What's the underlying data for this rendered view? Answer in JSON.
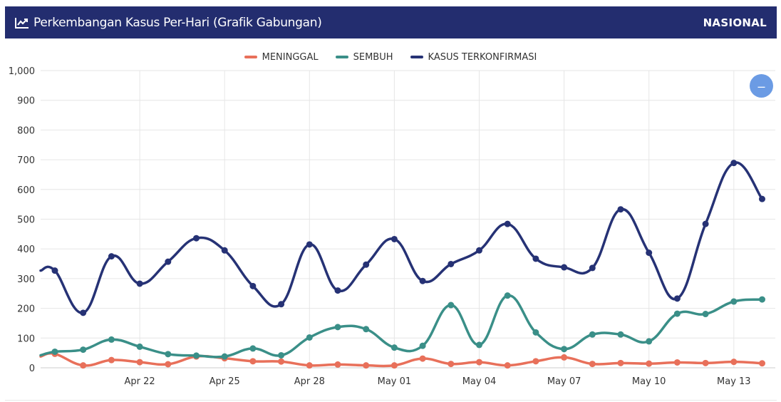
{
  "header": {
    "title": "Perkembangan Kasus Per-Hari (Grafik Gabungan)",
    "badge": "NASIONAL",
    "icon": "line-chart-icon",
    "bg_color": "#232d6f"
  },
  "collapse_button": {
    "icon": "minus-icon",
    "label": "–"
  },
  "chart_data": {
    "type": "line",
    "title": "",
    "xlabel": "",
    "ylabel": "",
    "ylim": [
      0,
      1000
    ],
    "yticks": [
      "0",
      "100",
      "200",
      "300",
      "400",
      "500",
      "600",
      "700",
      "800",
      "900",
      "1,000"
    ],
    "xtick_labels": [
      "Apr 22",
      "Apr 25",
      "Apr 28",
      "May 01",
      "May 04",
      "May 07",
      "May 10",
      "May 13"
    ],
    "grid": true,
    "legend_position": "top-center",
    "categories": [
      "Apr 19",
      "Apr 20",
      "Apr 21",
      "Apr 22",
      "Apr 23",
      "Apr 24",
      "Apr 25",
      "Apr 26",
      "Apr 27",
      "Apr 28",
      "Apr 29",
      "Apr 30",
      "May 01",
      "May 02",
      "May 03",
      "May 04",
      "May 05",
      "May 06",
      "May 07",
      "May 08",
      "May 09",
      "May 10",
      "May 11",
      "May 12",
      "May 13",
      "May 14"
    ],
    "series": [
      {
        "name": "MENINGGAL",
        "color": "#e8705a",
        "values": [
          47,
          8,
          26,
          19,
          12,
          38,
          32,
          22,
          21,
          8,
          11,
          8,
          8,
          31,
          13,
          19,
          8,
          22,
          35,
          13,
          16,
          14,
          18,
          16,
          20,
          15
        ]
      },
      {
        "name": "SEMBUH",
        "color": "#3a8f88",
        "values": [
          54,
          61,
          95,
          71,
          46,
          41,
          38,
          65,
          42,
          102,
          137,
          130,
          68,
          74,
          211,
          77,
          243,
          119,
          63,
          112,
          112,
          89,
          182,
          181,
          223,
          230
        ]
      },
      {
        "name": "KASUS TERKONFIRMASI",
        "color": "#263275",
        "values": [
          327,
          185,
          375,
          283,
          357,
          436,
          395,
          275,
          214,
          415,
          260,
          347,
          433,
          292,
          349,
          395,
          484,
          367,
          338,
          336,
          533,
          387,
          233,
          484,
          689,
          568
        ]
      }
    ]
  }
}
